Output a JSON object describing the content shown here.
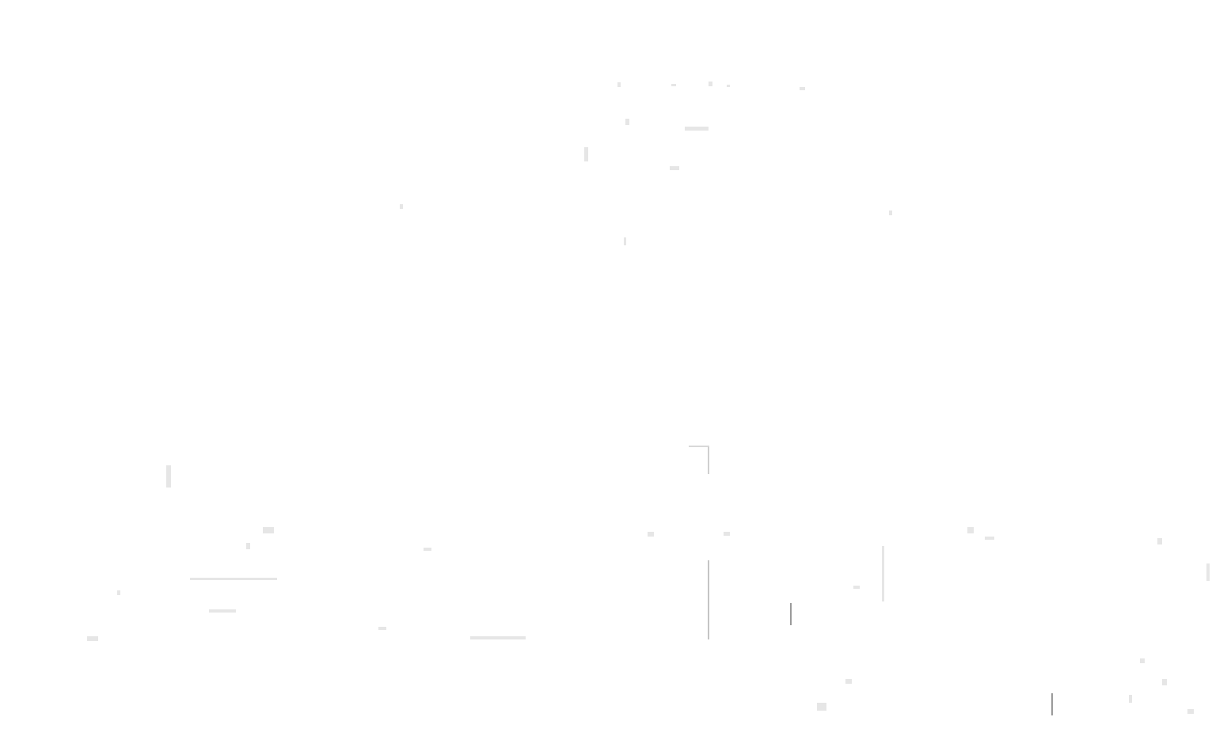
{
  "page": {
    "background_color": "#ffffff",
    "content_state": "blank"
  },
  "colors": {
    "artifact_dark": "#8a8a8a",
    "artifact_faint": "#e6e6e6"
  }
}
